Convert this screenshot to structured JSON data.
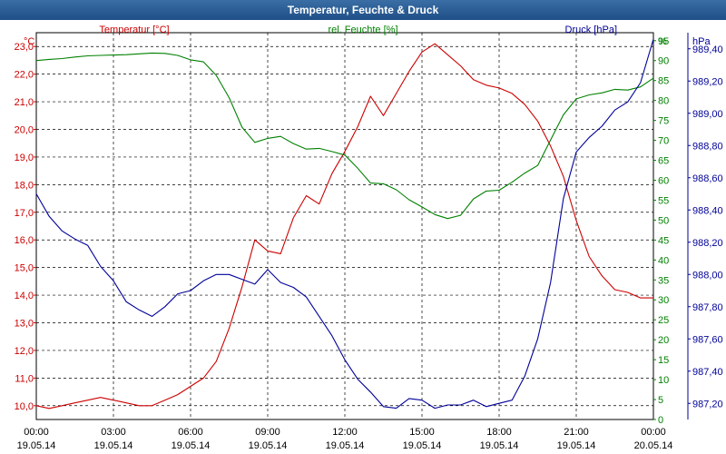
{
  "window": {
    "title": "Temperatur, Feuchte & Druck"
  },
  "colors": {
    "temperature": "#cc0000",
    "humidity": "#008000",
    "pressure": "#000099",
    "title_bar": "#2a5a95"
  },
  "chart_data": {
    "type": "line",
    "title": "Temperatur, Feuchte & Druck",
    "grid": true,
    "x_ticks": [
      {
        "time": "00:00",
        "date": "19.05.14"
      },
      {
        "time": "03:00",
        "date": "19.05.14"
      },
      {
        "time": "06:00",
        "date": "19.05.14"
      },
      {
        "time": "09:00",
        "date": "19.05.14"
      },
      {
        "time": "12:00",
        "date": "19.05.14"
      },
      {
        "time": "15:00",
        "date": "19.05.14"
      },
      {
        "time": "18:00",
        "date": "19.05.14"
      },
      {
        "time": "21:00",
        "date": "19.05.14"
      },
      {
        "time": "00:00",
        "date": "20.05.14"
      }
    ],
    "x_hours": [
      0,
      0.5,
      1,
      1.5,
      2,
      2.5,
      3,
      3.5,
      4,
      4.5,
      5,
      5.5,
      6,
      6.5,
      7,
      7.5,
      8,
      8.5,
      9,
      9.5,
      10,
      10.5,
      11,
      11.5,
      12,
      12.5,
      13,
      13.5,
      14,
      14.5,
      15,
      15.5,
      16,
      16.5,
      17,
      17.5,
      18,
      18.5,
      19,
      19.5,
      20,
      20.5,
      21,
      21.5,
      22,
      22.5,
      23,
      23.5,
      24
    ],
    "axes": {
      "temperature": {
        "unit_label": "°C",
        "min": 9.5,
        "max": 23.5,
        "ticks": [
          "10,0",
          "11,0",
          "12,0",
          "13,0",
          "14,0",
          "15,0",
          "16,0",
          "17,0",
          "18,0",
          "19,0",
          "20,0",
          "21,0",
          "22,0",
          "23,0"
        ]
      },
      "humidity": {
        "unit_label": "%",
        "min": 0,
        "max": 97,
        "ticks": [
          "0",
          "5",
          "10",
          "15",
          "20",
          "25",
          "30",
          "35",
          "40",
          "45",
          "50",
          "55",
          "60",
          "65",
          "70",
          "75",
          "80",
          "85",
          "90",
          "95"
        ]
      },
      "pressure": {
        "unit_label": "hPa",
        "min": 987.1,
        "max": 989.5,
        "ticks": [
          "987,20",
          "987,40",
          "987,60",
          "987,80",
          "988,00",
          "988,20",
          "988,40",
          "988,60",
          "988,80",
          "989,00",
          "989,20",
          "989,40"
        ]
      }
    },
    "series": [
      {
        "name": "Temperatur [°C]",
        "axis": "temperature",
        "color": "#cc0000",
        "values": [
          10.0,
          9.9,
          10.0,
          10.1,
          10.2,
          10.3,
          10.2,
          10.1,
          10.0,
          10.0,
          10.2,
          10.4,
          10.7,
          11.0,
          11.6,
          12.8,
          14.3,
          16.0,
          15.6,
          15.5,
          16.8,
          17.6,
          17.3,
          18.4,
          19.2,
          20.1,
          21.2,
          20.5,
          21.3,
          22.1,
          22.8,
          23.1,
          22.7,
          22.3,
          21.8,
          21.6,
          21.5,
          21.3,
          20.9,
          20.3,
          19.4,
          18.3,
          16.7,
          15.4,
          14.7,
          14.2,
          14.1,
          13.9,
          13.9
        ]
      },
      {
        "name": "rel. Feuchte [%]",
        "axis": "humidity",
        "color": "#008000",
        "values": [
          90.0,
          90.3,
          90.5,
          90.9,
          91.2,
          91.3,
          91.4,
          91.5,
          91.7,
          91.9,
          91.8,
          91.3,
          90.2,
          89.7,
          86.3,
          80.7,
          73.3,
          69.5,
          70.5,
          71.0,
          69.2,
          67.8,
          68.0,
          67.2,
          66.3,
          63.0,
          59.3,
          59.1,
          57.6,
          55.1,
          53.3,
          51.4,
          50.4,
          51.2,
          55.3,
          57.3,
          57.5,
          59.5,
          61.8,
          63.7,
          70.1,
          76.4,
          80.4,
          81.4,
          81.9,
          82.8,
          82.6,
          83.4,
          85.6
        ]
      },
      {
        "name": "Druck [hPa]",
        "axis": "pressure",
        "color": "#000099",
        "values": [
          988.5,
          988.36,
          988.27,
          988.22,
          988.18,
          988.05,
          987.96,
          987.83,
          987.78,
          987.74,
          987.8,
          987.88,
          987.9,
          987.96,
          988.0,
          988.0,
          987.97,
          987.94,
          988.03,
          987.95,
          987.92,
          987.86,
          987.74,
          987.62,
          987.47,
          987.35,
          987.27,
          987.18,
          987.17,
          987.23,
          987.22,
          987.17,
          987.19,
          987.19,
          987.22,
          987.18,
          987.2,
          987.22,
          987.37,
          987.6,
          987.95,
          988.47,
          988.76,
          988.85,
          988.92,
          989.02,
          989.07,
          989.19,
          989.46
        ]
      }
    ]
  }
}
